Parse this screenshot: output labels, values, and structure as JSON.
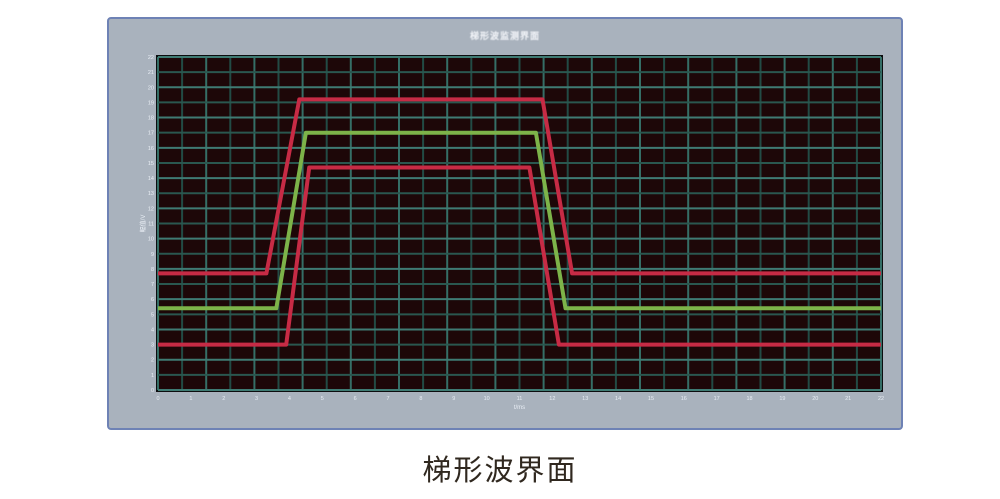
{
  "window": {
    "title": "梯形波监测界面",
    "frame_color": "#a9b2bd",
    "border_color": "#6e82b5"
  },
  "caption": "梯形波界面",
  "chart_data": {
    "type": "line",
    "title": "梯形波监测界面",
    "xlabel": "t/ms",
    "ylabel": "幅值/V",
    "xlim": [
      0,
      22
    ],
    "ylim": [
      0,
      22
    ],
    "x_ticks": [
      "0",
      "1",
      "2",
      "3",
      "4",
      "5",
      "6",
      "7",
      "8",
      "9",
      "10",
      "11",
      "12",
      "13",
      "14",
      "15",
      "16",
      "17",
      "18",
      "19",
      "20",
      "21",
      "22"
    ],
    "y_ticks": [
      "0",
      "1",
      "2",
      "3",
      "4",
      "5",
      "6",
      "7",
      "8",
      "9",
      "10",
      "11",
      "12",
      "13",
      "14",
      "15",
      "16",
      "17",
      "18",
      "19",
      "20",
      "21",
      "22"
    ],
    "x_grid_divisions": 30,
    "y_grid_divisions": 22,
    "grid": true,
    "legend": false,
    "colors": {
      "plot_background": "#1d0708",
      "plot_border": "#0c0d0f",
      "grid_major_h": "#3f7b73",
      "grid_minor_h": "#2a574f",
      "grid_major_v": "#356e66",
      "grid_minor_v": "#224b45",
      "tick_text": "#e9eef5",
      "red_trace": "#c72b45",
      "green_trace": "#7db349"
    },
    "series": [
      {
        "name": "upper-limit-red",
        "color": "#c72b45",
        "points": [
          [
            0,
            7.7
          ],
          [
            3.3,
            7.7
          ],
          [
            4.3,
            19.2
          ],
          [
            11.7,
            19.2
          ],
          [
            12.6,
            7.7
          ],
          [
            22,
            7.7
          ]
        ]
      },
      {
        "name": "signal-green",
        "color": "#7db349",
        "points": [
          [
            0,
            5.4
          ],
          [
            3.6,
            5.4
          ],
          [
            4.5,
            17.0
          ],
          [
            11.5,
            17.0
          ],
          [
            12.4,
            5.4
          ],
          [
            22,
            5.4
          ]
        ]
      },
      {
        "name": "lower-limit-red",
        "color": "#c72b45",
        "points": [
          [
            0,
            3.0
          ],
          [
            3.9,
            3.0
          ],
          [
            4.6,
            14.7
          ],
          [
            11.3,
            14.7
          ],
          [
            12.2,
            3.0
          ],
          [
            22,
            3.0
          ]
        ]
      }
    ]
  }
}
